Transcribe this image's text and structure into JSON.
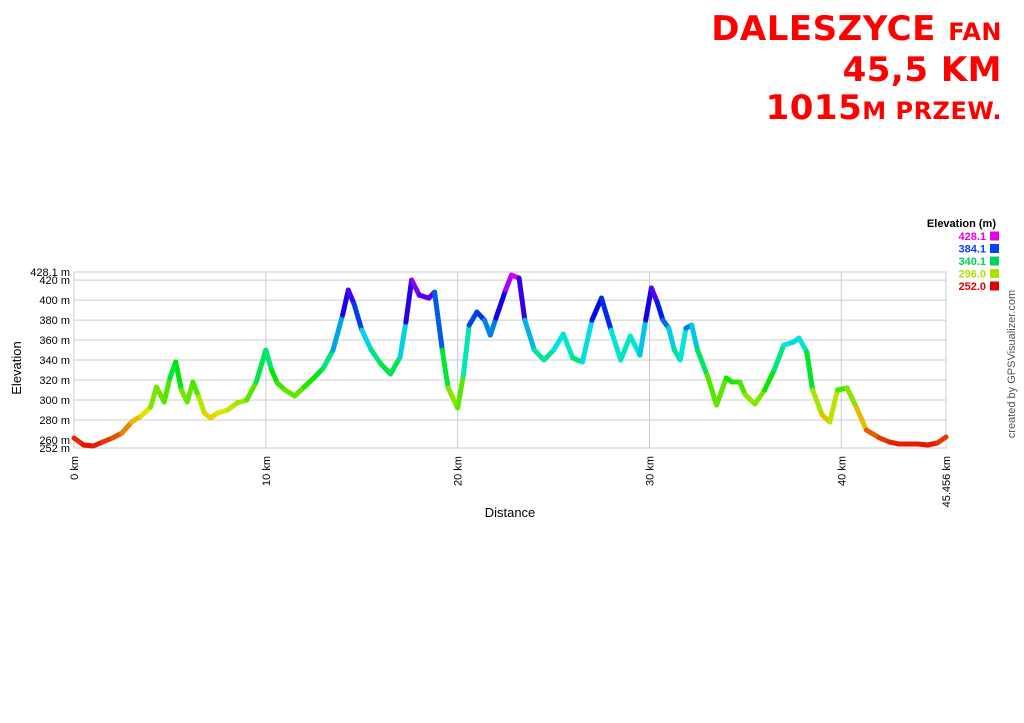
{
  "header": {
    "line1_big": "DALESZYCE",
    "line1_small": "FAN",
    "line2": "45,5 KM",
    "line3_big": "1015",
    "line3_small": "M PRZEW."
  },
  "credit": "created by GPSVisualizer.com",
  "colors": {
    "title": "#ff0000",
    "grid": "#cccccc",
    "plot_background": "#ffffff"
  },
  "chart_data": {
    "type": "line",
    "xlabel": "Distance",
    "ylabel": "Elevation",
    "xlim": [
      0,
      45.456
    ],
    "ylim": [
      252,
      428.1
    ],
    "x_ticks": [
      {
        "value": 0,
        "label": "0 km"
      },
      {
        "value": 10,
        "label": "10 km"
      },
      {
        "value": 20,
        "label": "20 km"
      },
      {
        "value": 30,
        "label": "30 km"
      },
      {
        "value": 40,
        "label": "40 km"
      },
      {
        "value": 45.456,
        "label": "45.456 km"
      }
    ],
    "y_ticks": [
      {
        "value": 252,
        "label": "252 m"
      },
      {
        "value": 260,
        "label": "260 m"
      },
      {
        "value": 280,
        "label": "280 m"
      },
      {
        "value": 300,
        "label": "300 m"
      },
      {
        "value": 320,
        "label": "320 m"
      },
      {
        "value": 340,
        "label": "340 m"
      },
      {
        "value": 360,
        "label": "360 m"
      },
      {
        "value": 380,
        "label": "380 m"
      },
      {
        "value": 400,
        "label": "400 m"
      },
      {
        "value": 420,
        "label": "420 m"
      },
      {
        "value": 428.1,
        "label": "428.1 m"
      }
    ],
    "grid": true,
    "legend": {
      "title": "Elevation (m)",
      "placement": "top-right",
      "entries": [
        {
          "label": "428.1",
          "color": "#e600e6"
        },
        {
          "label": "384.1",
          "color": "#0040ff"
        },
        {
          "label": "340.1",
          "color": "#00d060"
        },
        {
          "label": "296.0",
          "color": "#b0e000"
        },
        {
          "label": "252.0",
          "color": "#e00000"
        }
      ]
    },
    "series": [
      {
        "x": [
          0,
          0.5,
          1,
          1.5,
          2,
          2.5,
          3,
          3.5,
          4,
          4.3,
          4.7,
          5,
          5.3,
          5.6,
          5.9,
          6.2,
          6.5,
          6.8,
          7.1,
          7.5,
          8,
          8.5,
          9,
          9.5,
          10,
          10.3,
          10.6,
          11,
          11.5,
          12,
          12.5,
          13,
          13.5,
          14,
          14.3,
          14.6,
          15,
          15.5,
          16,
          16.5,
          17,
          17.3,
          17.6,
          18,
          18.5,
          18.8,
          19.2,
          19.5,
          20,
          20.3,
          20.6,
          21,
          21.4,
          21.7,
          22,
          22.5,
          22.8,
          23.2,
          23.5,
          24,
          24.5,
          25,
          25.5,
          26,
          26.5,
          27,
          27.5,
          28,
          28.5,
          29,
          29.5,
          29.8,
          30.1,
          30.4,
          30.7,
          31,
          31.3,
          31.6,
          31.9,
          32.2,
          32.5,
          33,
          33.5,
          34,
          34.3,
          34.7,
          35,
          35.5,
          36,
          36.5,
          37,
          37.5,
          37.8,
          38.2,
          38.5,
          39,
          39.4,
          39.8,
          40.3,
          40.8,
          41.3,
          42,
          42.5,
          43,
          43.5,
          44,
          44.5,
          45,
          45.456
        ],
        "y": [
          262,
          255,
          254,
          258,
          262,
          267,
          278,
          284,
          293,
          313,
          298,
          322,
          338,
          310,
          298,
          318,
          303,
          287,
          282,
          287,
          290,
          297,
          300,
          318,
          350,
          330,
          317,
          310,
          304,
          313,
          322,
          332,
          350,
          385,
          410,
          396,
          370,
          350,
          336,
          326,
          343,
          378,
          420,
          405,
          402,
          408,
          350,
          312,
          292,
          325,
          375,
          388,
          380,
          365,
          382,
          410,
          425,
          422,
          380,
          350,
          340,
          350,
          366,
          342,
          338,
          380,
          402,
          370,
          340,
          364,
          345,
          380,
          412,
          398,
          380,
          372,
          350,
          340,
          372,
          375,
          350,
          325,
          295,
          322,
          318,
          318,
          305,
          296,
          310,
          330,
          355,
          358,
          362,
          348,
          310,
          285,
          278,
          310,
          312,
          292,
          270,
          262,
          258,
          256,
          256,
          256,
          255,
          257,
          263
        ]
      }
    ]
  }
}
